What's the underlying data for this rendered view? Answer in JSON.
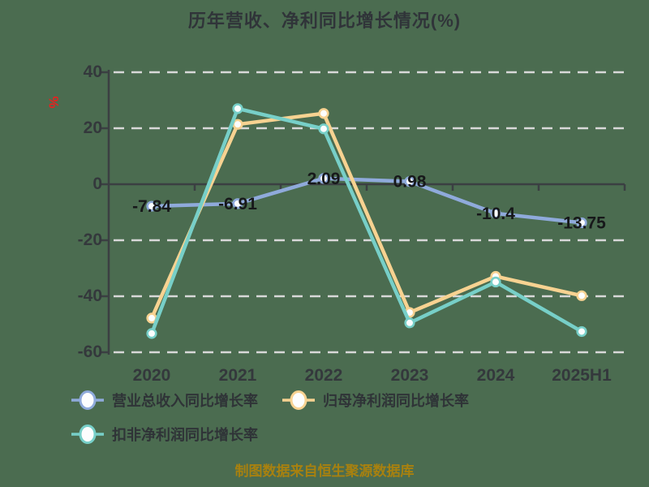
{
  "title": "历年营收、净利同比增长情况(%)",
  "y_axis_unit": "%",
  "footer": {
    "text": "制图数据来自恒生聚源数据库",
    "color": "#a8810f"
  },
  "colors": {
    "background": "#4b6c50",
    "axis": "#3b3f42",
    "gridline": "#d8d8d8",
    "title_text": "#303439",
    "tick_text": "#34383c",
    "data_label_text": "#17181a",
    "unit_text": "#e42320",
    "marker_fill": "#fcfdfe"
  },
  "chart_data": {
    "type": "line",
    "title": "历年营收、净利同比增长情况(%)",
    "categories": [
      "2020",
      "2021",
      "2022",
      "2023",
      "2024",
      "2025H1"
    ],
    "xlabel": "",
    "ylabel": "%",
    "ylim": [
      -60,
      40
    ],
    "y_ticks": [
      40,
      20,
      0,
      -20,
      -40,
      -60
    ],
    "grid": "horizontal-dashed",
    "legend_position": "bottom-left-two-rows",
    "series": [
      {
        "name": "营业总收入同比增长率",
        "color": "#8faadb",
        "values": [
          -7.84,
          -6.91,
          2.09,
          0.98,
          -10.4,
          -13.75
        ],
        "point_labels": [
          "-7.84",
          "-6.91",
          "2.09",
          "0.98",
          "-10.4",
          "-13.75"
        ]
      },
      {
        "name": "归母净利润同比增长率",
        "color": "#f7d291",
        "values": [
          -47.8,
          21.4,
          25.3,
          -45.8,
          -32.9,
          -39.8
        ],
        "point_labels": []
      },
      {
        "name": "扣非净利润同比增长率",
        "color": "#77cfc8",
        "values": [
          -53.3,
          27.0,
          19.8,
          -49.5,
          -34.9,
          -52.6
        ],
        "point_labels": []
      }
    ]
  }
}
